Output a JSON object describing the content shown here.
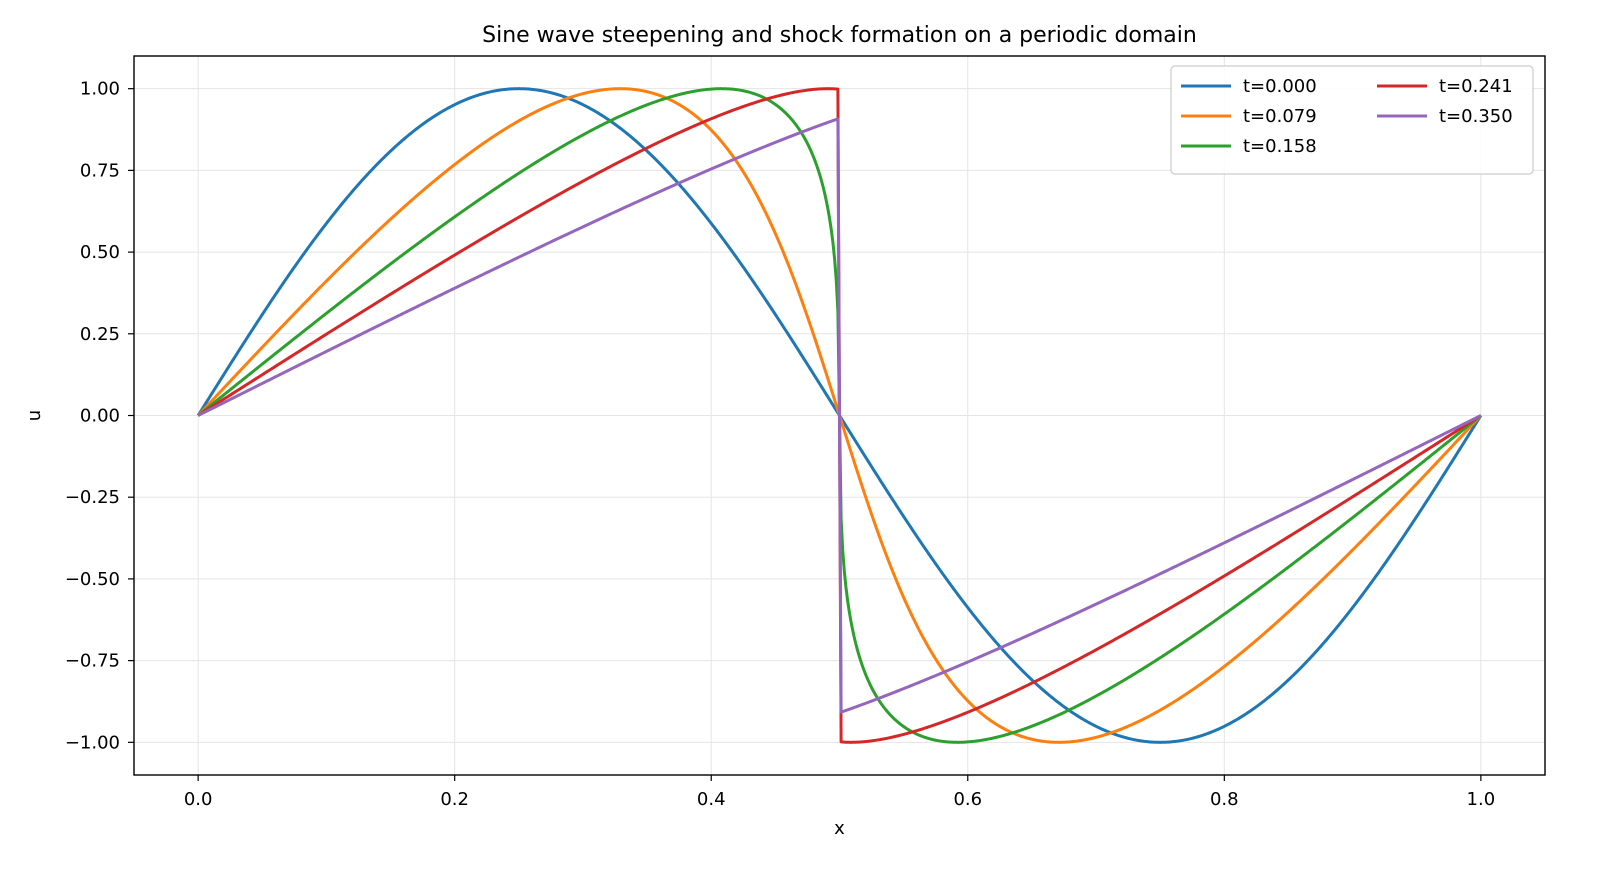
{
  "chart_data": {
    "type": "line",
    "title": "Sine wave steepening and shock formation on a periodic domain",
    "xlabel": "x",
    "ylabel": "u",
    "xlim": [
      -0.05,
      1.05
    ],
    "ylim": [
      -1.1,
      1.1
    ],
    "xticks": [
      0.0,
      0.2,
      0.4,
      0.6,
      0.8,
      1.0
    ],
    "xtick_labels": [
      "0.0",
      "0.2",
      "0.4",
      "0.6",
      "0.8",
      "1.0"
    ],
    "yticks": [
      1.0,
      0.75,
      0.5,
      0.25,
      0.0,
      -0.25,
      -0.5,
      -0.75,
      -1.0
    ],
    "ytick_labels": [
      "1.00",
      "0.75",
      "0.50",
      "0.25",
      "0.00",
      "−0.25",
      "−0.50",
      "−0.75",
      "−1.00"
    ],
    "grid": true,
    "legend": {
      "location": "upper right",
      "columns": 2
    },
    "series": [
      {
        "name": "t=0.000",
        "t": 0.0,
        "color": "#1f77b4"
      },
      {
        "name": "t=0.079",
        "t": 0.079,
        "color": "#ff7f0e"
      },
      {
        "name": "t=0.158",
        "t": 0.158,
        "color": "#2ca02c"
      },
      {
        "name": "t=0.241",
        "t": 0.241,
        "color": "#d62728"
      },
      {
        "name": "t=0.350",
        "t": 0.35,
        "color": "#9467bd"
      }
    ],
    "curve_definition": {
      "initial_condition": "u(x,0) = sin(2*pi*x)",
      "x_range": [
        0.0,
        1.0
      ],
      "shock_position": 0.5
    }
  }
}
